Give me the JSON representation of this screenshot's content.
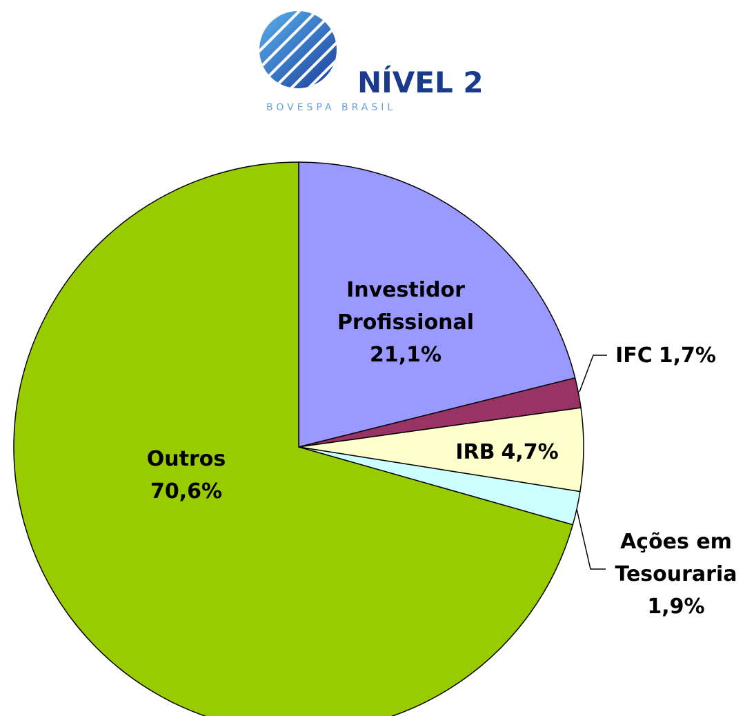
{
  "logo": {
    "title": "NÍVEL 2",
    "subtitle": "BOVESPA BRASIL"
  },
  "chart_data": {
    "type": "pie",
    "categories": [
      "Investidor Profissional",
      "IFC",
      "IRB",
      "Ações em Tesouraria",
      "Outros"
    ],
    "values": [
      21.1,
      1.7,
      4.7,
      1.9,
      70.6
    ],
    "value_labels": [
      "21,1%",
      "1,7%",
      "4,7%",
      "1,9%",
      "70,6%"
    ],
    "colors": [
      "#9999ff",
      "#993366",
      "#ffffcc",
      "#ccffff",
      "#99cc00"
    ]
  }
}
